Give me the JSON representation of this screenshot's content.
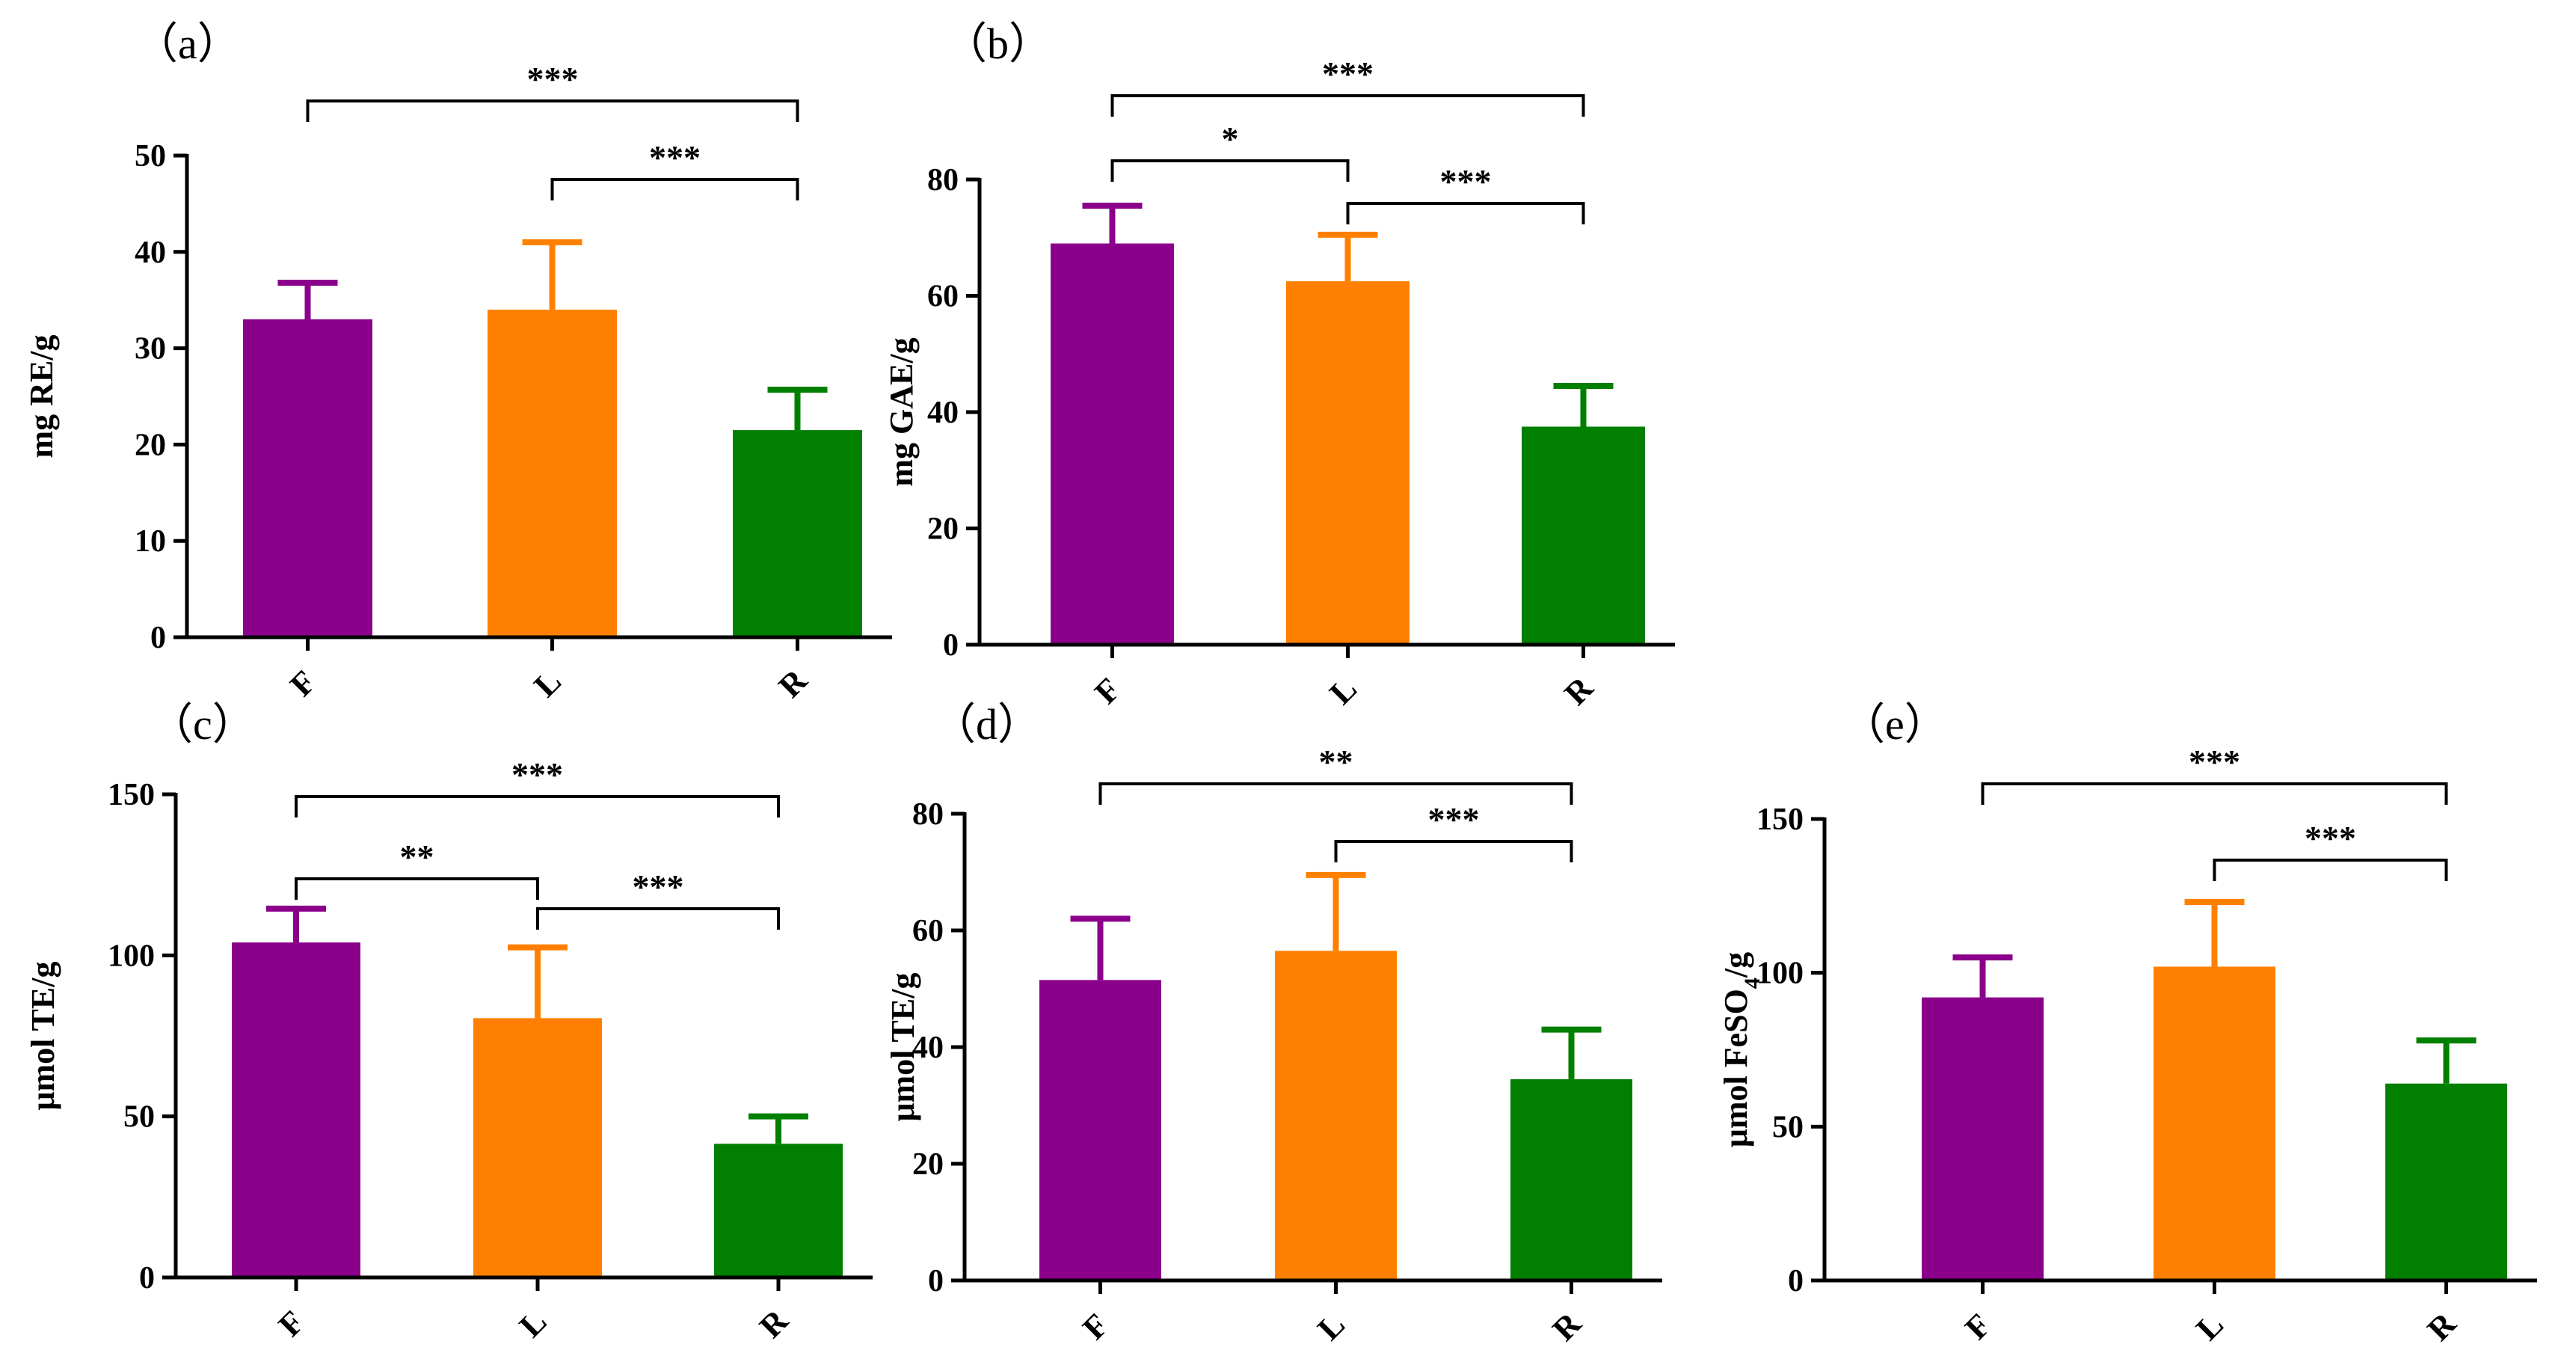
{
  "chart_data": [
    {
      "type": "bar",
      "panel": "（a）",
      "categories": [
        "F",
        "L",
        "R"
      ],
      "values": [
        33,
        34,
        21.5
      ],
      "errors": [
        3.8,
        7.0,
        4.2
      ],
      "colors": [
        "#8B008B",
        "#FF8000",
        "#007F00"
      ],
      "ylabel": "mg RE/g",
      "ylim": [
        0,
        50
      ],
      "yticks": [
        0,
        10,
        20,
        30,
        40,
        50
      ],
      "significance": [
        {
          "from": 0,
          "to": 2,
          "label": "***"
        },
        {
          "from": 1,
          "to": 2,
          "label": "***"
        }
      ]
    },
    {
      "type": "bar",
      "panel": "（b）",
      "categories": [
        "F",
        "L",
        "R"
      ],
      "values": [
        69,
        62.5,
        37.5
      ],
      "errors": [
        6.5,
        8.0,
        7.0
      ],
      "colors": [
        "#8B008B",
        "#FF8000",
        "#007F00"
      ],
      "ylabel": "mg GAE/g",
      "ylim": [
        0,
        80
      ],
      "yticks": [
        0,
        20,
        40,
        60,
        80
      ],
      "significance": [
        {
          "from": 0,
          "to": 2,
          "label": "***"
        },
        {
          "from": 0,
          "to": 1,
          "label": "*"
        },
        {
          "from": 1,
          "to": 2,
          "label": "***"
        }
      ]
    },
    {
      "type": "bar",
      "panel": "（c）",
      "categories": [
        "F",
        "L",
        "R"
      ],
      "values": [
        104,
        80.5,
        41.5
      ],
      "errors": [
        10.5,
        22.0,
        8.5
      ],
      "colors": [
        "#8B008B",
        "#FF8000",
        "#007F00"
      ],
      "ylabel": "μmol TE/g",
      "ylim": [
        0,
        150
      ],
      "yticks": [
        0,
        50,
        100,
        150
      ],
      "significance": [
        {
          "from": 0,
          "to": 2,
          "label": "***"
        },
        {
          "from": 0,
          "to": 1,
          "label": "**"
        },
        {
          "from": 1,
          "to": 2,
          "label": "***"
        }
      ]
    },
    {
      "type": "bar",
      "panel": "（d）",
      "categories": [
        "F",
        "L",
        "R"
      ],
      "values": [
        51.5,
        56.5,
        34.5
      ],
      "errors": [
        10.5,
        13.0,
        8.5
      ],
      "colors": [
        "#8B008B",
        "#FF8000",
        "#007F00"
      ],
      "ylabel": "μmol TE/g",
      "ylim": [
        0,
        80
      ],
      "yticks": [
        0,
        20,
        40,
        60,
        80
      ],
      "significance": [
        {
          "from": 0,
          "to": 2,
          "label": "**"
        },
        {
          "from": 1,
          "to": 2,
          "label": "***"
        }
      ]
    },
    {
      "type": "bar",
      "panel": "（e）",
      "categories": [
        "F",
        "L",
        "R"
      ],
      "values": [
        92,
        102,
        64
      ],
      "errors": [
        13.0,
        21.0,
        14.0
      ],
      "colors": [
        "#8B008B",
        "#FF8000",
        "#007F00"
      ],
      "ylabel": "μmol FeSO",
      "ylabel_sub": "4",
      "ylabel_suffix": "/g",
      "ylim": [
        0,
        150
      ],
      "yticks": [
        0,
        50,
        100,
        150
      ],
      "significance": [
        {
          "from": 0,
          "to": 2,
          "label": "***"
        },
        {
          "from": 1,
          "to": 2,
          "label": "***"
        }
      ]
    }
  ]
}
